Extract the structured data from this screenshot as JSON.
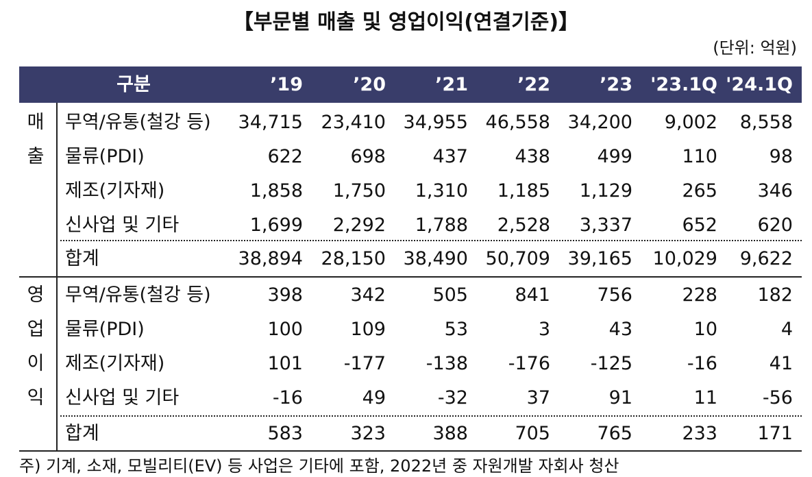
{
  "title": "【부문별 매출 및 영업이익(연결기준)】",
  "unit": "(단위: 억원)",
  "table": {
    "header": [
      "구분",
      "’19",
      "’20",
      "’21",
      "’22",
      "’23",
      "'23.1Q",
      "'24.1Q"
    ],
    "sections": [
      {
        "label": [
          "매",
          "출"
        ],
        "rows": [
          {
            "name": "무역/유통(철강 등)",
            "values": [
              "34,715",
              "23,410",
              "34,955",
              "46,558",
              "34,200",
              "9,002",
              "8,558"
            ]
          },
          {
            "name": "물류(PDI)",
            "values": [
              "622",
              "698",
              "437",
              "438",
              "499",
              "110",
              "98"
            ]
          },
          {
            "name": "제조(기자재)",
            "values": [
              "1,858",
              "1,750",
              "1,310",
              "1,185",
              "1,129",
              "265",
              "346"
            ]
          },
          {
            "name": "신사업 및 기타",
            "values": [
              "1,699",
              "2,292",
              "1,788",
              "2,528",
              "3,337",
              "652",
              "620"
            ]
          }
        ],
        "total": {
          "name": "합계",
          "values": [
            "38,894",
            "28,150",
            "38,490",
            "50,709",
            "39,165",
            "10,029",
            "9,622"
          ]
        }
      },
      {
        "label": [
          "영",
          "업",
          "이",
          "익"
        ],
        "rows": [
          {
            "name": "무역/유통(철강 등)",
            "values": [
              "398",
              "342",
              "505",
              "841",
              "756",
              "228",
              "182"
            ]
          },
          {
            "name": "물류(PDI)",
            "values": [
              "100",
              "109",
              "53",
              "3",
              "43",
              "10",
              "4"
            ]
          },
          {
            "name": "제조(기자재)",
            "values": [
              "101",
              "-177",
              "-138",
              "-176",
              "-125",
              "-16",
              "41"
            ]
          },
          {
            "name": "신사업 및 기타",
            "values": [
              "-16",
              "49",
              "-32",
              "37",
              "91",
              "11",
              "-56"
            ]
          }
        ],
        "total": {
          "name": "합계",
          "values": [
            "583",
            "323",
            "388",
            "705",
            "765",
            "233",
            "171"
          ]
        }
      }
    ]
  },
  "footnote": "주) 기계, 소재, 모빌리티(EV) 등 사업은 기타에 포함, 2022년 중 자원개발 자회사 청산"
}
